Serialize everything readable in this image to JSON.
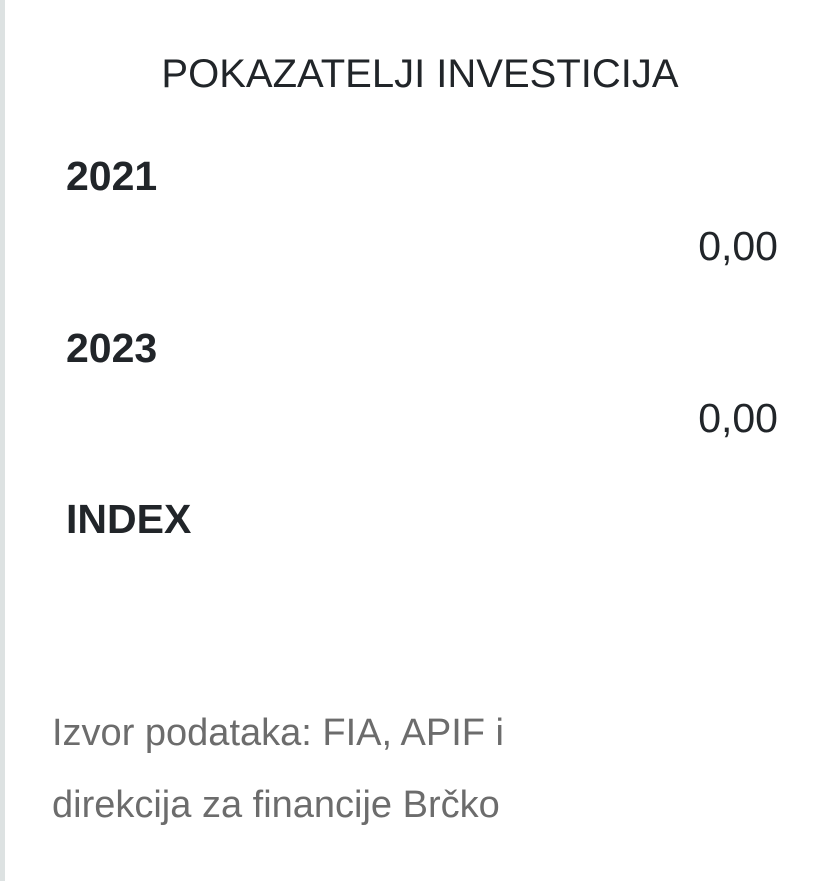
{
  "title": "POKAZATELJI INVESTICIJA",
  "rows": [
    {
      "label": "2021",
      "value": "0,00"
    },
    {
      "label": "2023",
      "value": "0,00"
    },
    {
      "label": "INDEX",
      "value": ""
    }
  ],
  "source": {
    "line1": "Izvor podataka: FIA, APIF i",
    "line2": "direkcija za financije Brčko"
  }
}
